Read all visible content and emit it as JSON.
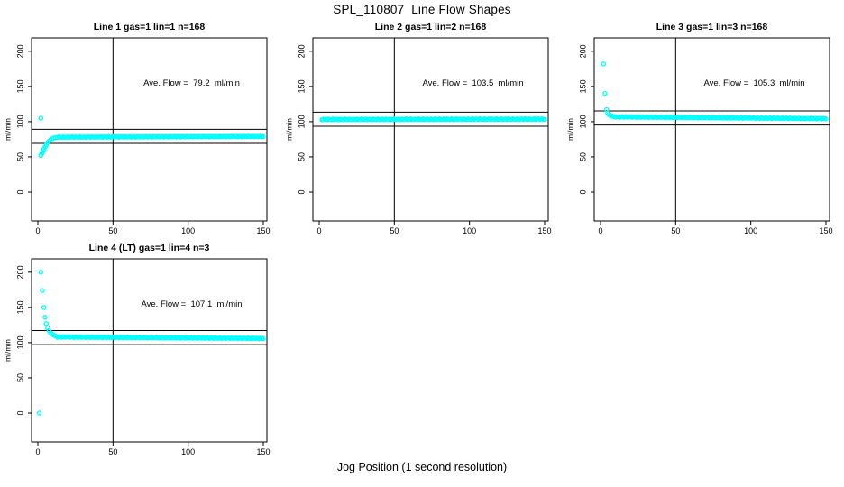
{
  "page": {
    "title": "SPL_110807  Line Flow Shapes",
    "xlabel": "Jog Position (1 second resolution)",
    "ylabel": "ml/min",
    "marker_color": "#00ffff",
    "line_color": "#000000"
  },
  "chart_data": [
    {
      "type": "scatter",
      "title": "Line 1 gas=1 lin=1 n=168",
      "annotation": "Ave. Flow =  79.2  ml/min",
      "ave_flow": 79.2,
      "ylabel": "ml/min",
      "xlabel": "",
      "xticks": [
        0,
        50,
        100,
        150
      ],
      "yticks": [
        0,
        50,
        100,
        150,
        200
      ],
      "xlim": [
        -4.2,
        152.4
      ],
      "ylim": [
        -41,
        219
      ],
      "vline": 50,
      "hlines": [
        89.2,
        69.2
      ],
      "marker_color": "#00ffff",
      "points": [
        [
          2,
          105
        ],
        [
          2,
          52
        ],
        [
          2.7,
          55
        ],
        [
          3.4,
          58
        ],
        [
          4.1,
          61
        ],
        [
          4.8,
          64
        ],
        [
          5.6,
          67
        ],
        [
          6.4,
          70
        ],
        [
          7.3,
          72
        ],
        [
          8.3,
          74
        ],
        [
          9.4,
          75.5
        ],
        [
          10.5,
          76.8
        ],
        [
          11.7,
          77.6
        ]
      ],
      "trend": {
        "x0": 13,
        "x1": 150,
        "y0": 78.0,
        "y1": 79.0,
        "step": 1,
        "wiggle": 0.5
      }
    },
    {
      "type": "scatter",
      "title": "Line 2 gas=1 lin=2 n=168",
      "annotation": "Ave. Flow =  103.5  ml/min",
      "ave_flow": 103.5,
      "ylabel": "ml/min",
      "xlabel": "",
      "xticks": [
        0,
        50,
        100,
        150
      ],
      "yticks": [
        0,
        50,
        100,
        150,
        200
      ],
      "xlim": [
        -4.2,
        152.4
      ],
      "ylim": [
        -41,
        219
      ],
      "vline": 50,
      "hlines": [
        113.5,
        93.5
      ],
      "marker_color": "#00ffff",
      "points": [
        [
          2,
          102.8
        ],
        [
          2.6,
          103.2
        ]
      ],
      "trend": {
        "x0": 2,
        "x1": 150,
        "y0": 103.2,
        "y1": 103.6,
        "step": 1,
        "wiggle": 0.6
      }
    },
    {
      "type": "scatter",
      "title": "Line 3 gas=1 lin=3 n=168",
      "annotation": "Ave. Flow =  105.3  ml/min",
      "ave_flow": 105.3,
      "ylabel": "ml/min",
      "xlabel": "",
      "xticks": [
        0,
        50,
        100,
        150
      ],
      "yticks": [
        0,
        50,
        100,
        150,
        200
      ],
      "xlim": [
        -4.2,
        152.4
      ],
      "ylim": [
        -41,
        219
      ],
      "vline": 50,
      "hlines": [
        115.3,
        95.3
      ],
      "marker_color": "#00ffff",
      "points": [
        [
          2,
          182
        ],
        [
          3,
          140
        ],
        [
          4,
          117
        ],
        [
          4.8,
          112
        ],
        [
          5.6,
          110
        ],
        [
          6.5,
          108.8
        ],
        [
          7.5,
          108
        ],
        [
          8.5,
          107.3
        ]
      ],
      "trend": {
        "x0": 9,
        "x1": 150,
        "y0": 106.8,
        "y1": 104.3,
        "step": 1,
        "wiggle": 0.5
      }
    },
    {
      "type": "scatter",
      "title": "Line 4 (LT) gas=1 lin=4 n=3",
      "annotation": "Ave. Flow =  107.1  ml/min",
      "ave_flow": 107.1,
      "ylabel": "ml/min",
      "xlabel": "",
      "xticks": [
        0,
        50,
        100,
        150
      ],
      "yticks": [
        0,
        50,
        100,
        150,
        200
      ],
      "xlim": [
        -4.2,
        152.4
      ],
      "ylim": [
        -41,
        219
      ],
      "vline": 50,
      "hlines": [
        117.1,
        97.1
      ],
      "marker_color": "#00ffff",
      "points": [
        [
          1,
          0
        ],
        [
          2,
          200
        ],
        [
          3,
          174
        ],
        [
          4,
          150
        ],
        [
          4.8,
          136
        ],
        [
          5.6,
          127
        ],
        [
          6.5,
          121
        ],
        [
          7.4,
          117
        ],
        [
          8.4,
          114
        ],
        [
          9.5,
          112
        ],
        [
          10.6,
          110.5
        ],
        [
          11.8,
          109.4
        ]
      ],
      "trend": {
        "x0": 13,
        "x1": 150,
        "y0": 108,
        "y1": 106,
        "step": 1,
        "wiggle": 0.5
      }
    }
  ]
}
